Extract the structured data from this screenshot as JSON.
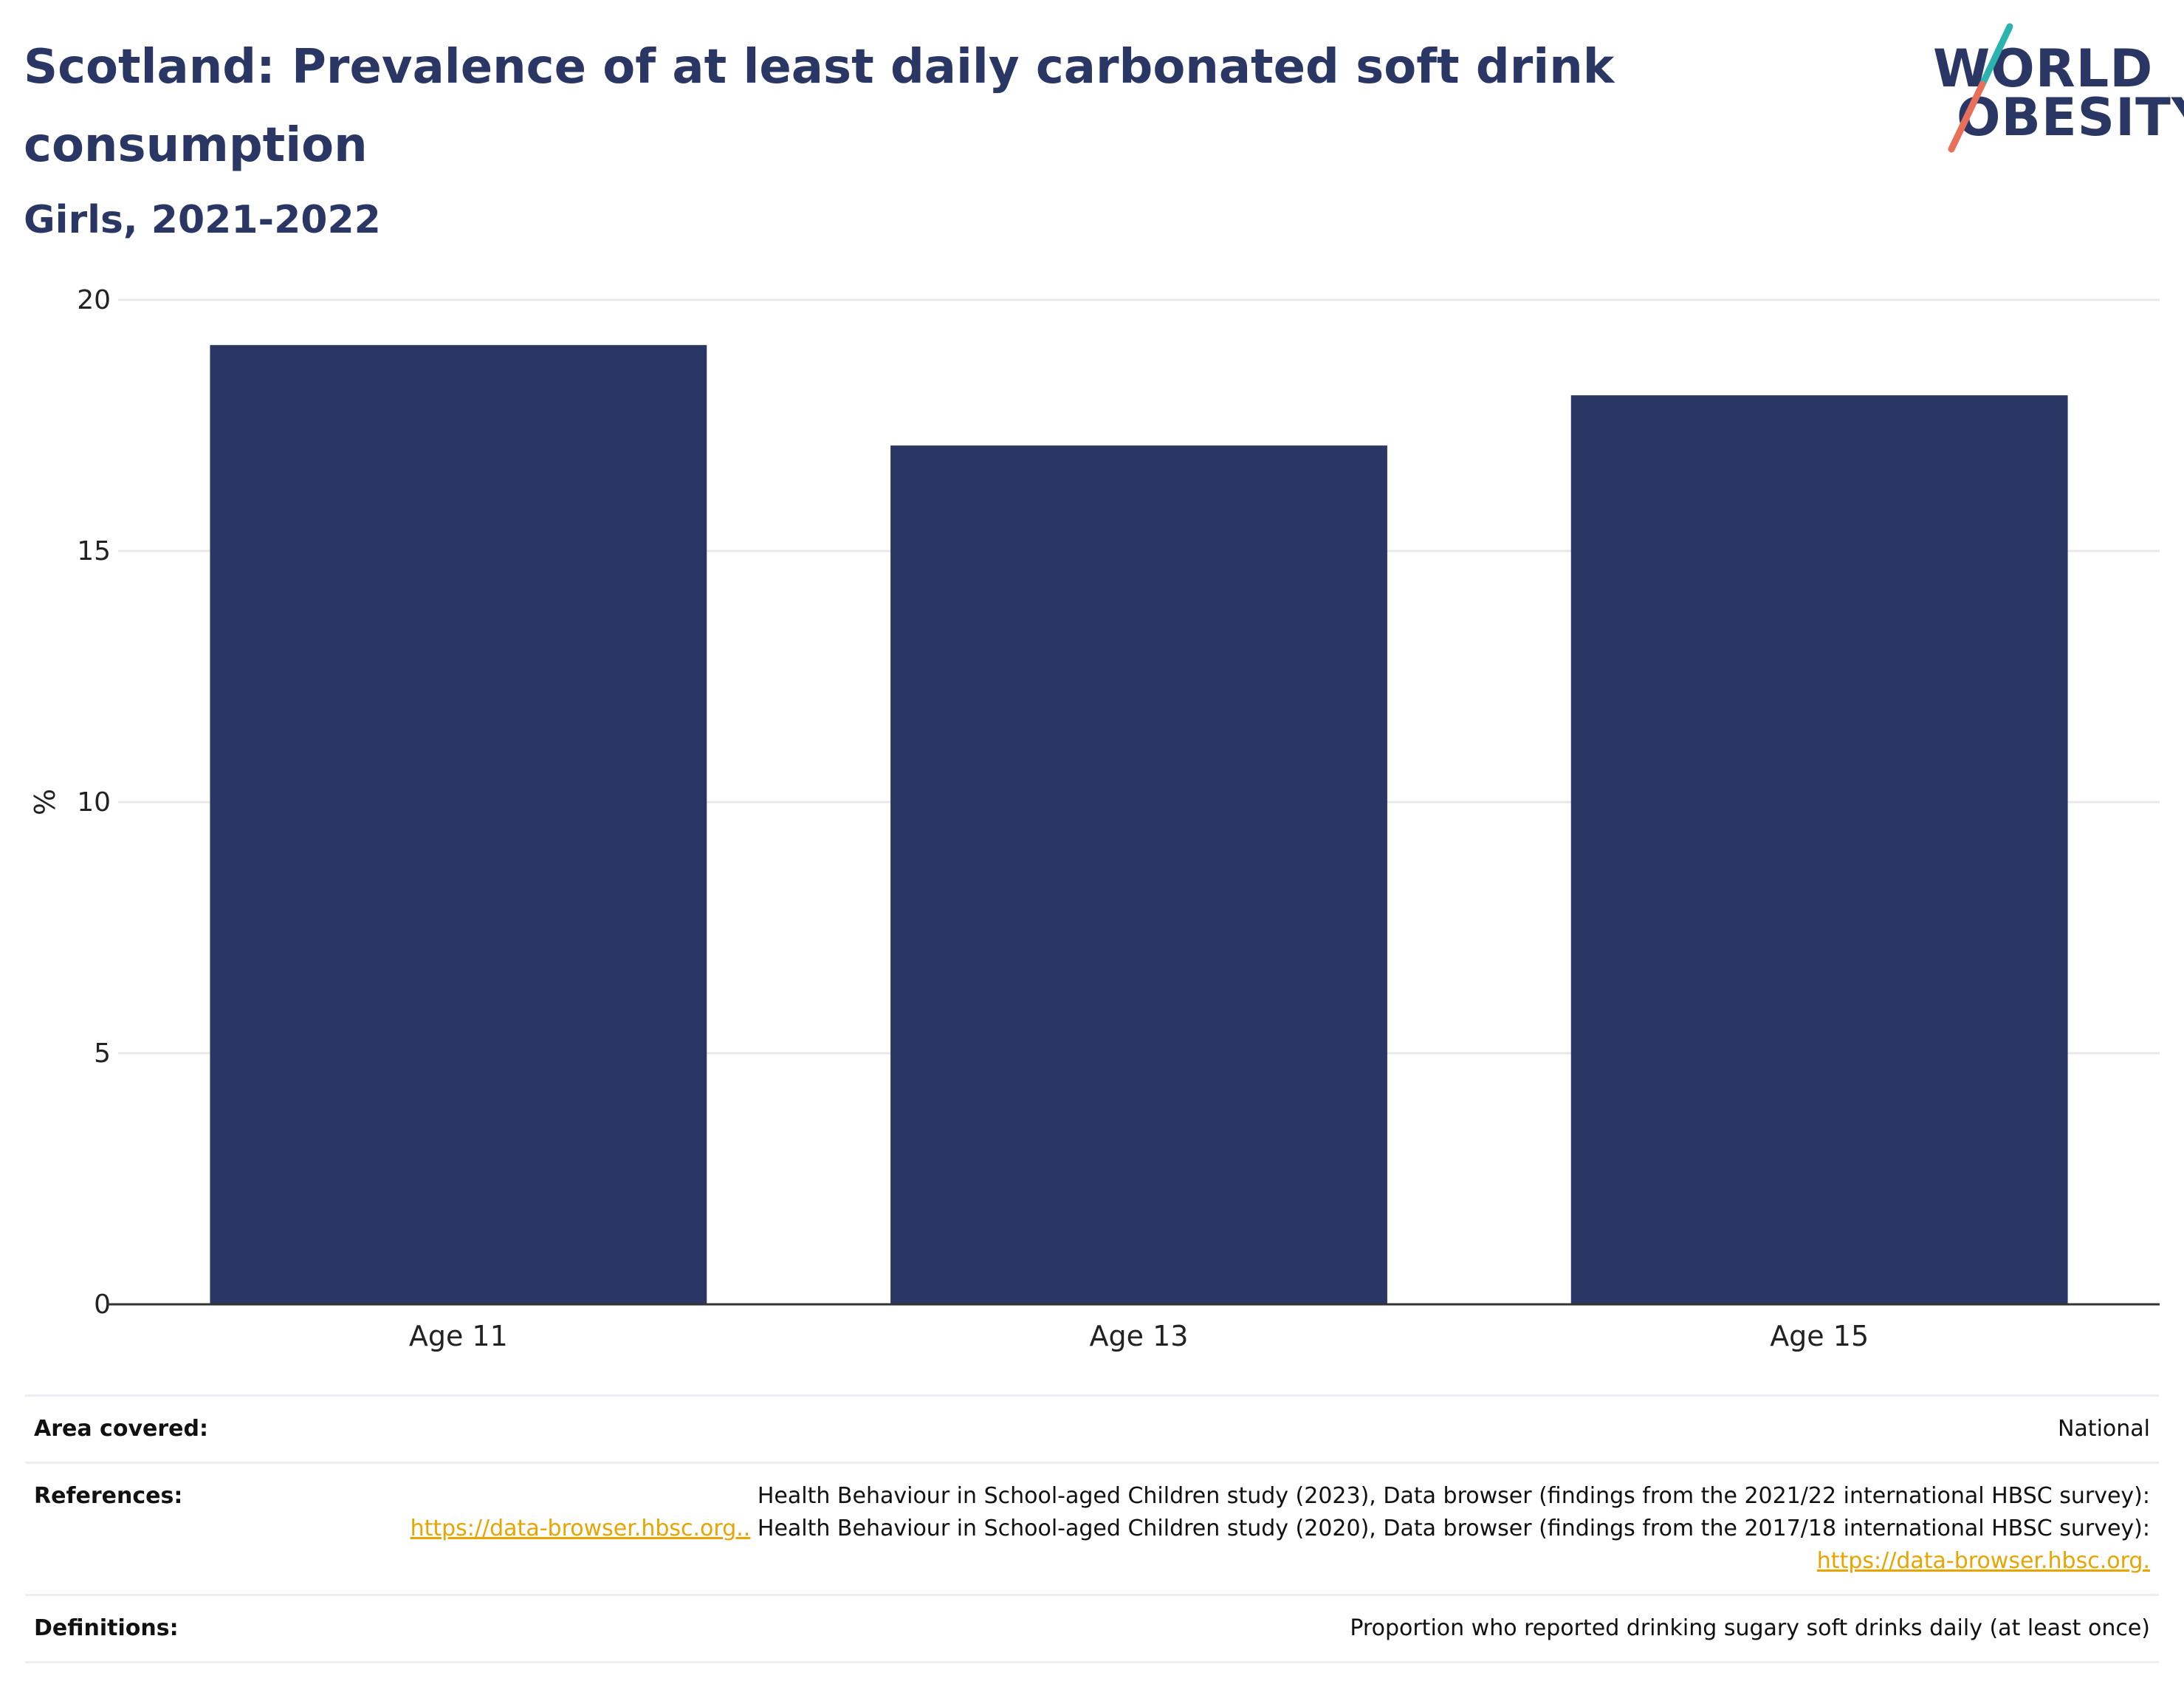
{
  "header": {
    "title": "Scotland: Prevalence of at least daily carbonated soft drink consumption",
    "subtitle": "Girls, 2021-2022"
  },
  "logo": {
    "line1": "WORLD",
    "line2": "OBESITY",
    "colors": {
      "navy": "#2a3764",
      "teal": "#2bb3ad",
      "coral": "#e8705a"
    }
  },
  "chart_data": {
    "type": "bar",
    "categories": [
      "Age 11",
      "Age 13",
      "Age 15"
    ],
    "values": [
      19.1,
      17.1,
      18.1
    ],
    "ylabel": "%",
    "ylim": [
      0,
      20
    ],
    "yticks": [
      0,
      5,
      10,
      15,
      20
    ],
    "grid": true,
    "bar_color": "#2a3764"
  },
  "info": {
    "area": {
      "label": "Area covered:",
      "value": "National"
    },
    "references": {
      "label": "References:",
      "text1": "Health Behaviour in School-aged Children study (2023), Data browser (findings from the 2021/22 international HBSC survey):",
      "link1": "https://data-browser.hbsc.org..",
      "text2": " Health Behaviour in School-aged Children study (2020), Data browser (findings from the 2017/18 international HBSC survey):",
      "link2": "https://data-browser.hbsc.org."
    },
    "definitions": {
      "label": "Definitions:",
      "value": "Proportion who reported drinking sugary soft drinks daily (at least once)"
    }
  }
}
